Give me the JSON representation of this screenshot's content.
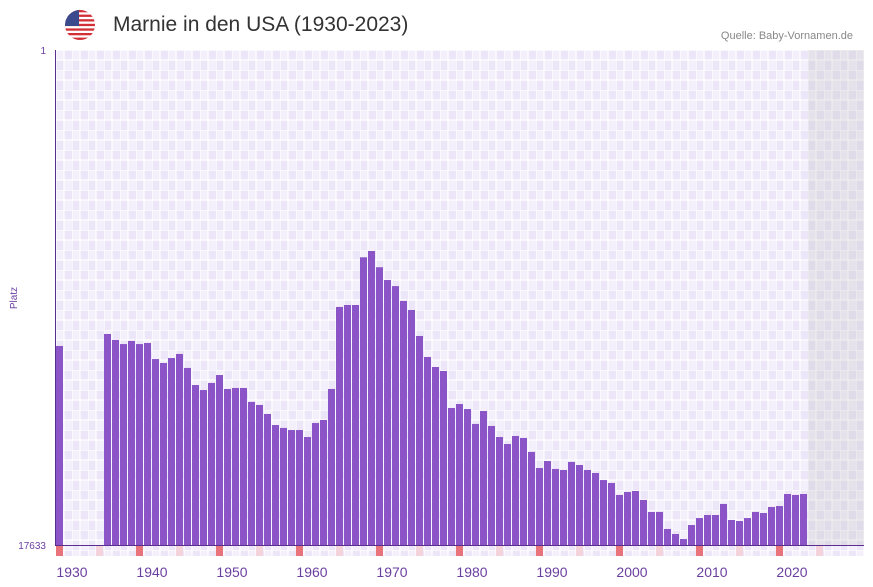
{
  "header": {
    "title": "Marnie in den USA (1930-2023)",
    "source": "Quelle: Baby-Vornamen.de",
    "flag_icon": "us-flag-icon"
  },
  "colors": {
    "bar": "#8b55c8",
    "decade_tick": "#e8737a",
    "half_decade_tick": "#f5d3dc",
    "axis": "#5b2d8e"
  },
  "chart_data": {
    "type": "bar",
    "title": "Marnie in den USA (1930-2023)",
    "ylabel": "Platz",
    "yscale": "log",
    "ylim": [
      1,
      17633
    ],
    "y_ticks": [
      "1",
      "17633"
    ],
    "x_range": [
      1930,
      2029
    ],
    "x_ticks": [
      "1930",
      "1940",
      "1950",
      "1960",
      "1970",
      "1980",
      "1990",
      "2000",
      "2010",
      "2020"
    ],
    "first_year": 1930,
    "ranks": [
      346,
      null,
      null,
      null,
      null,
      null,
      273,
      307,
      333,
      313,
      333,
      326,
      448,
      484,
      439,
      405,
      534,
      748,
      826,
      718,
      614,
      809,
      793,
      793,
      1045,
      1109,
      1325,
      1648,
      1746,
      1820,
      1820,
      2089,
      1585,
      1493,
      809,
      160,
      154,
      154,
      60,
      53,
      73,
      94,
      106,
      142,
      170,
      284,
      430,
      524,
      567,
      1178,
      1089,
      1202,
      1614,
      1250,
      1679,
      2089,
      2399,
      2047,
      2128,
      2806,
      3854,
      3357,
      3926,
      4008,
      3420,
      3631,
      4008,
      4253,
      4887,
      5176,
      6561,
      6194,
      6067,
      7244,
      9183,
      9183,
      12850,
      14190,
      15670,
      11880,
      10350,
      9750,
      9750,
      7835,
      10760,
      10970,
      10350,
      9183,
      9376,
      8318,
      8166,
      6442,
      6561,
      6442
    ]
  }
}
